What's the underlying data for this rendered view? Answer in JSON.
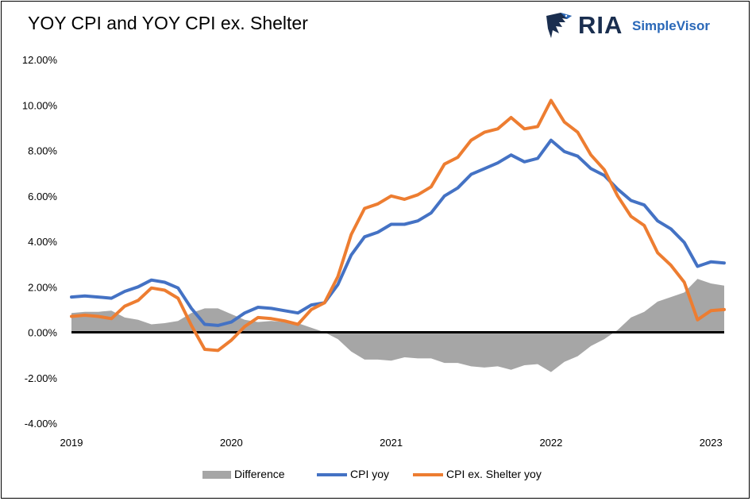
{
  "chart_data": {
    "type": "line",
    "title": "YOY CPI and YOY CPI ex. Shelter",
    "xlabel": "",
    "ylabel": "",
    "ylim": [
      -4,
      12
    ],
    "y_ticks": [
      "12.00%",
      "10.00%",
      "8.00%",
      "6.00%",
      "4.00%",
      "2.00%",
      "0.00%",
      "-2.00%",
      "-4.00%"
    ],
    "y_tick_values": [
      12,
      10,
      8,
      6,
      4,
      2,
      0,
      -2,
      -4
    ],
    "x_ticks": [
      "2019",
      "2020",
      "2021",
      "2022",
      "2023"
    ],
    "x_range": [
      "2019-01",
      "2023-02"
    ],
    "months": [
      "2019-01",
      "2019-02",
      "2019-03",
      "2019-04",
      "2019-05",
      "2019-06",
      "2019-07",
      "2019-08",
      "2019-09",
      "2019-10",
      "2019-11",
      "2019-12",
      "2020-01",
      "2020-02",
      "2020-03",
      "2020-04",
      "2020-05",
      "2020-06",
      "2020-07",
      "2020-08",
      "2020-09",
      "2020-10",
      "2020-11",
      "2020-12",
      "2021-01",
      "2021-02",
      "2021-03",
      "2021-04",
      "2021-05",
      "2021-06",
      "2021-07",
      "2021-08",
      "2021-09",
      "2021-10",
      "2021-11",
      "2021-12",
      "2022-01",
      "2022-02",
      "2022-03",
      "2022-04",
      "2022-05",
      "2022-06",
      "2022-07",
      "2022-08",
      "2022-09",
      "2022-10",
      "2022-11",
      "2022-12",
      "2023-01",
      "2023-02"
    ],
    "series": [
      {
        "name": "Difference",
        "kind": "area",
        "color": "#a6a6a6",
        "values": [
          0.85,
          0.9,
          0.9,
          0.95,
          0.65,
          0.55,
          0.35,
          0.4,
          0.5,
          0.85,
          1.05,
          1.05,
          0.8,
          0.55,
          0.45,
          0.5,
          0.45,
          0.4,
          0.2,
          0.0,
          -0.3,
          -0.85,
          -1.2,
          -1.2,
          -1.25,
          -1.1,
          -1.15,
          -1.15,
          -1.35,
          -1.35,
          -1.5,
          -1.55,
          -1.5,
          -1.65,
          -1.45,
          -1.4,
          -1.75,
          -1.3,
          -1.05,
          -0.6,
          -0.3,
          0.1,
          0.65,
          0.9,
          1.35,
          1.55,
          1.75,
          2.35,
          2.15,
          2.05
        ]
      },
      {
        "name": "CPI yoy",
        "kind": "line",
        "color": "#4472c4",
        "values": [
          1.55,
          1.6,
          1.55,
          1.5,
          1.8,
          2.0,
          2.3,
          2.2,
          1.95,
          1.05,
          0.35,
          0.3,
          0.45,
          0.85,
          1.1,
          1.05,
          0.95,
          0.85,
          1.2,
          1.3,
          2.1,
          3.4,
          4.2,
          4.4,
          4.75,
          4.75,
          4.9,
          5.25,
          6.0,
          6.35,
          6.95,
          7.2,
          7.45,
          7.8,
          7.5,
          7.65,
          8.45,
          7.95,
          7.75,
          7.2,
          6.9,
          6.3,
          5.8,
          5.6,
          4.9,
          4.55,
          3.95,
          2.9,
          3.1,
          3.05
        ]
      },
      {
        "name": "CPI ex. Shelter yoy",
        "kind": "line",
        "color": "#ed7d31",
        "values": [
          0.7,
          0.75,
          0.7,
          0.6,
          1.15,
          1.4,
          1.95,
          1.85,
          1.5,
          0.3,
          -0.75,
          -0.8,
          -0.35,
          0.25,
          0.65,
          0.6,
          0.5,
          0.35,
          1.0,
          1.3,
          2.45,
          4.3,
          5.45,
          5.65,
          6.0,
          5.85,
          6.05,
          6.4,
          7.4,
          7.7,
          8.45,
          8.8,
          8.95,
          9.45,
          8.95,
          9.05,
          10.2,
          9.25,
          8.8,
          7.8,
          7.15,
          6.0,
          5.1,
          4.7,
          3.5,
          2.95,
          2.2,
          0.55,
          0.95,
          1.0
        ]
      }
    ],
    "legend_position": "bottom",
    "grid": false
  },
  "header": {
    "logo_text_ria": "RIA",
    "logo_text_sv": "SimpleVisor"
  }
}
